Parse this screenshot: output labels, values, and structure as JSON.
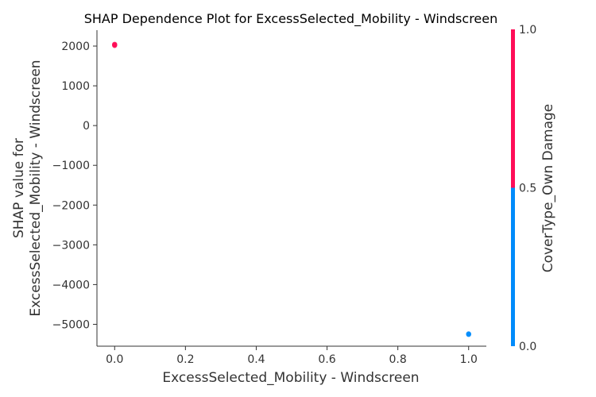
{
  "chart_data": {
    "type": "scatter",
    "title": "SHAP Dependence Plot for ExcessSelected_Mobility - Windscreen",
    "xlabel": "ExcessSelected_Mobility - Windscreen",
    "ylabel_lines": [
      "SHAP value for",
      "ExcessSelected_Mobility - Windscreen"
    ],
    "xlim": [
      -0.05,
      1.05
    ],
    "ylim": [
      -5550,
      2400
    ],
    "xticks": [
      0.0,
      0.2,
      0.4,
      0.6,
      0.8,
      1.0
    ],
    "xtick_labels": [
      "0.0",
      "0.2",
      "0.4",
      "0.6",
      "0.8",
      "1.0"
    ],
    "yticks": [
      2000,
      1000,
      0,
      -1000,
      -2000,
      -3000,
      -4000,
      -5000
    ],
    "ytick_labels": [
      "2000",
      "1000",
      "0",
      "−1000",
      "−2000",
      "−3000",
      "−4000",
      "−5000"
    ],
    "points": [
      {
        "x": 0.0,
        "y": 2030,
        "color_value": 1.0
      },
      {
        "x": 0.0,
        "y": 2045,
        "color_value": 1.0
      },
      {
        "x": 0.0,
        "y": 2015,
        "color_value": 1.0
      },
      {
        "x": 1.0,
        "y": -5240,
        "color_value": 0.0
      },
      {
        "x": 1.0,
        "y": -5255,
        "color_value": 0.0
      }
    ],
    "colorbar": {
      "label": "CoverType_Own Damage",
      "ticks": [
        1.0,
        0.5,
        0.0
      ],
      "tick_labels": [
        "1.0",
        "0.5",
        "0.0"
      ],
      "high_color": "#ff0d57",
      "low_color": "#008bfb"
    },
    "grid": false
  }
}
